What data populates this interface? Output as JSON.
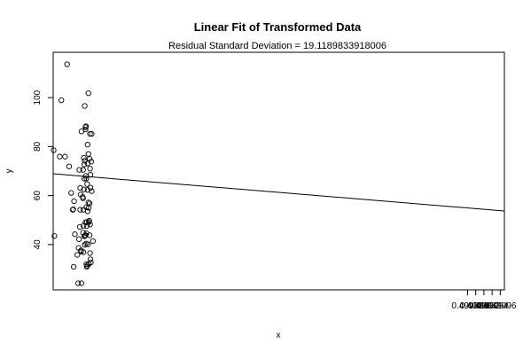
{
  "chart_data": {
    "type": "scatter",
    "title": "Linear Fit of Transformed Data",
    "subtitle": "Residual Standard Deviation =  19.1189833918006",
    "xlabel": "x",
    "ylabel": "y",
    "xlim": [
      0.498868,
      0.49997
    ],
    "ylim": [
      21.5,
      118.5
    ],
    "x_ticks": [
      0.49988,
      0.4999,
      0.49992,
      0.49994,
      0.49996
    ],
    "x_tick_labels": [
      "0.49988",
      "0.49990",
      "0.49992",
      "0.49994",
      "0.49996"
    ],
    "y_ticks": [
      40,
      60,
      80,
      100
    ],
    "y_tick_labels": [
      "40",
      "60",
      "80",
      "100"
    ],
    "grid": false,
    "legend": "none",
    "fit_line": {
      "x": [
        0.498868,
        0.49997
      ],
      "y": [
        68.9,
        53.7
      ]
    },
    "points": [
      [
        0.498869,
        78.5
      ],
      [
        0.498871,
        43.5
      ],
      [
        0.498884,
        75.9
      ],
      [
        0.498888,
        98.9
      ],
      [
        0.498897,
        75.9
      ],
      [
        0.498902,
        113.6
      ],
      [
        0.498907,
        71.9
      ],
      [
        0.498912,
        61.1
      ],
      [
        0.498916,
        54.2
      ],
      [
        0.498917,
        54.4
      ],
      [
        0.498918,
        30.9
      ],
      [
        0.498919,
        57.7
      ],
      [
        0.498921,
        44.2
      ],
      [
        0.498927,
        35.8
      ],
      [
        0.498929,
        24.2
      ],
      [
        0.49893,
        38.6
      ],
      [
        0.498931,
        42.2
      ],
      [
        0.498932,
        70.5
      ],
      [
        0.498933,
        47.2
      ],
      [
        0.498934,
        63.1
      ],
      [
        0.498934,
        54.2
      ],
      [
        0.498935,
        60.4
      ],
      [
        0.498936,
        37.6
      ],
      [
        0.498936,
        37.1
      ],
      [
        0.498937,
        24.2
      ],
      [
        0.498937,
        86.2
      ],
      [
        0.49894,
        59.4
      ],
      [
        0.498941,
        70.5
      ],
      [
        0.498941,
        44.9
      ],
      [
        0.498941,
        58.9
      ],
      [
        0.498942,
        54.2
      ],
      [
        0.498942,
        36.9
      ],
      [
        0.498942,
        47.7
      ],
      [
        0.498943,
        62.5
      ],
      [
        0.498943,
        75.4
      ],
      [
        0.498944,
        72.7
      ],
      [
        0.498944,
        43.4
      ],
      [
        0.498944,
        66.9
      ],
      [
        0.498945,
        96.6
      ],
      [
        0.498945,
        74.2
      ],
      [
        0.498945,
        39.9
      ],
      [
        0.498946,
        43.6
      ],
      [
        0.498947,
        49.1
      ],
      [
        0.498947,
        43.8
      ],
      [
        0.498947,
        87.0
      ],
      [
        0.498947,
        87.9
      ],
      [
        0.498948,
        68.0
      ],
      [
        0.498948,
        88.3
      ],
      [
        0.498949,
        32.0
      ],
      [
        0.498949,
        40.4
      ],
      [
        0.498949,
        44.6
      ],
      [
        0.498949,
        55.2
      ],
      [
        0.498949,
        67.0
      ],
      [
        0.49895,
        47.6
      ],
      [
        0.49895,
        49.2
      ],
      [
        0.49895,
        30.9
      ],
      [
        0.498951,
        31.4
      ],
      [
        0.498951,
        64.7
      ],
      [
        0.498952,
        73.1
      ],
      [
        0.498952,
        80.8
      ],
      [
        0.498952,
        53.6
      ],
      [
        0.498952,
        62.3
      ],
      [
        0.498953,
        40.1
      ],
      [
        0.498954,
        101.8
      ],
      [
        0.498954,
        57.2
      ],
      [
        0.498954,
        77.0
      ],
      [
        0.498955,
        55.0
      ],
      [
        0.498955,
        49.2
      ],
      [
        0.498955,
        32.0
      ],
      [
        0.498956,
        49.7
      ],
      [
        0.498957,
        56.8
      ],
      [
        0.498957,
        75.0
      ],
      [
        0.498957,
        43.8
      ],
      [
        0.498958,
        85.2
      ],
      [
        0.498958,
        71.0
      ],
      [
        0.498958,
        36.5
      ],
      [
        0.498958,
        48.2
      ],
      [
        0.498959,
        68.5
      ],
      [
        0.498959,
        63.2
      ],
      [
        0.498959,
        34.0
      ],
      [
        0.49896,
        32.7
      ],
      [
        0.498961,
        73.9
      ],
      [
        0.498962,
        61.8
      ],
      [
        0.498962,
        85.2
      ],
      [
        0.498965,
        41.4
      ]
    ]
  }
}
